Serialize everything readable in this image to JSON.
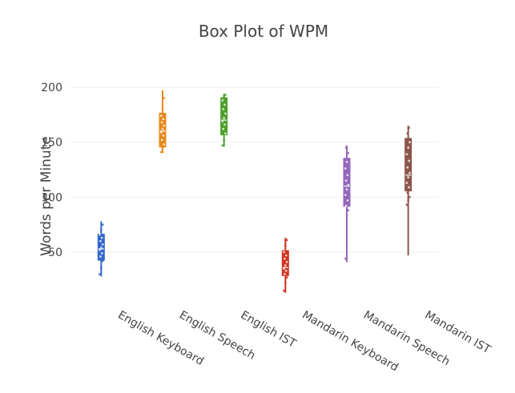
{
  "chart_data": {
    "type": "box",
    "title": "Box Plot of WPM",
    "xlabel": "",
    "ylabel": "Words per Minute",
    "ylim": [
      10,
      205
    ],
    "yticks": [
      50,
      100,
      150,
      200
    ],
    "grid": true,
    "legend": "none",
    "categories": [
      "English Keyboard",
      "English Speech",
      "English IST",
      "Mandarin Keyboard",
      "Mandarin Speech",
      "Mandarin IST"
    ],
    "series": [
      {
        "category": "English Keyboard",
        "color": "#3366cc",
        "min": 28,
        "q1": 43,
        "median": 53,
        "q3": 66,
        "max": 78,
        "points": [
          30,
          36,
          42,
          46,
          49,
          52,
          54,
          57,
          60,
          63,
          66,
          70,
          75
        ]
      },
      {
        "category": "English Speech",
        "color": "#e8891a",
        "min": 140,
        "q1": 146,
        "median": 160,
        "q3": 176,
        "max": 197,
        "points": [
          141,
          145,
          148,
          152,
          156,
          159,
          162,
          165,
          168,
          171,
          174,
          180,
          190
        ]
      },
      {
        "category": "English IST",
        "color": "#4ca02c",
        "min": 146,
        "q1": 157,
        "median": 170,
        "q3": 190,
        "max": 194,
        "points": [
          147,
          152,
          158,
          162,
          166,
          169,
          172,
          176,
          180,
          184,
          188,
          191,
          193
        ]
      },
      {
        "category": "Mandarin Keyboard",
        "color": "#d1331e",
        "min": 13,
        "q1": 29,
        "median": 36,
        "q3": 51,
        "max": 63,
        "points": [
          15,
          22,
          27,
          30,
          33,
          35,
          38,
          41,
          44,
          47,
          50,
          56,
          61
        ]
      },
      {
        "category": "Mandarin Speech",
        "color": "#9467bd",
        "min": 41,
        "q1": 92,
        "median": 110,
        "q3": 135,
        "max": 147,
        "points": [
          44,
          83,
          88,
          92,
          97,
          102,
          107,
          111,
          115,
          120,
          126,
          132,
          140,
          145
        ]
      },
      {
        "category": "Mandarin IST",
        "color": "#8c564b",
        "min": 47,
        "q1": 106,
        "median": 120,
        "q3": 153,
        "max": 165,
        "points": [
          93,
          97,
          100,
          104,
          109,
          113,
          118,
          122,
          127,
          133,
          139,
          145,
          150,
          158,
          163
        ]
      }
    ]
  }
}
